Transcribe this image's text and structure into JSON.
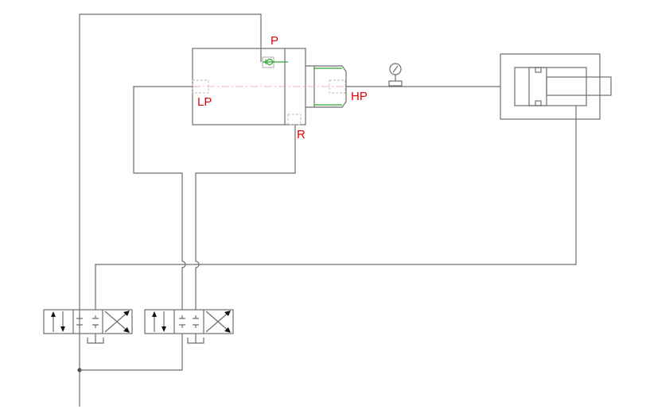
{
  "labels": {
    "p": "P",
    "lp": "LP",
    "hp": "HP",
    "r": "R"
  },
  "colors": {
    "line": "#6e6e6e",
    "label": "#e60000",
    "check_valve": "#2fa82f",
    "centerline": "#f0a0a0"
  },
  "components": [
    "pressure-intensifier",
    "check-valve",
    "pressure-gauge",
    "hydraulic-cylinder",
    "directional-valve-1",
    "directional-valve-2"
  ]
}
